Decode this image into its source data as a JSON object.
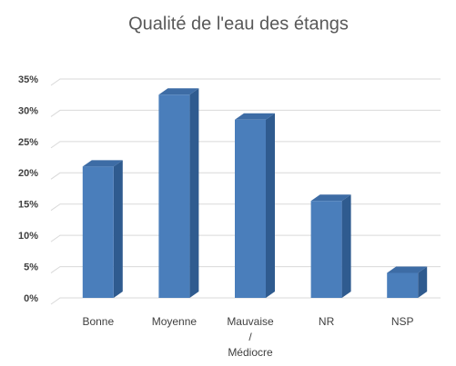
{
  "chart_data": {
    "type": "bar",
    "title": "Qualité de l'eau des étangs",
    "categories": [
      "Bonne",
      "Moyenne",
      "Mauvaise / Médiocre",
      "NR",
      "NSP"
    ],
    "values": [
      21,
      32.5,
      28.5,
      15.5,
      4
    ],
    "color": "#4a7ebb",
    "ylim": [
      0,
      35
    ],
    "yticks": [
      {
        "value": 0,
        "label": "0%"
      },
      {
        "value": 5,
        "label": "5%"
      },
      {
        "value": 10,
        "label": "10%"
      },
      {
        "value": 15,
        "label": "15%"
      },
      {
        "value": 20,
        "label": "20%"
      },
      {
        "value": 25,
        "label": "25%"
      },
      {
        "value": 30,
        "label": "30%"
      },
      {
        "value": 35,
        "label": "35%"
      }
    ],
    "grid": true
  }
}
